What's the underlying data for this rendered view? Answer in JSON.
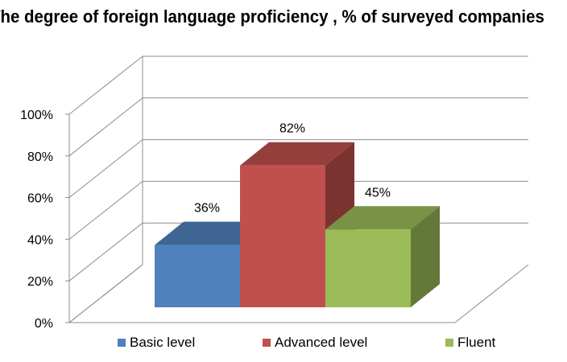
{
  "chart_data": {
    "type": "bar",
    "title": "The degree of foreign language proficiency , % of surveyed companies",
    "categories": [
      "Basic level",
      "Advanced level",
      "Fluent"
    ],
    "values": [
      36,
      82,
      45
    ],
    "data_labels": [
      "36%",
      "82%",
      "45%"
    ],
    "yticks": [
      "0%",
      "20%",
      "40%",
      "60%",
      "80%",
      "100%"
    ],
    "ylim": [
      0,
      100
    ],
    "xlabel": "",
    "ylabel": "",
    "grid": true,
    "three_d": true,
    "legend_position": "bottom",
    "colors": [
      "#4F81BD",
      "#C0504D",
      "#9BBB59"
    ]
  }
}
